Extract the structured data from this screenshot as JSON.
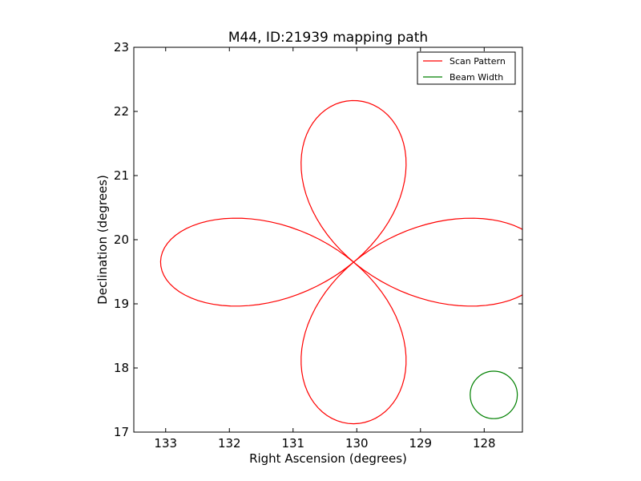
{
  "chart_data": {
    "type": "line",
    "title": "M44, ID:21939 mapping path",
    "xlabel": "Right Ascension (degrees)",
    "ylabel": "Declination (degrees)",
    "xlim": [
      133.5,
      127.4
    ],
    "ylim": [
      17,
      23
    ],
    "x_axis_reversed": true,
    "xticks": [
      133,
      132,
      131,
      130,
      129,
      128
    ],
    "yticks": [
      17,
      18,
      19,
      20,
      21,
      22,
      23
    ],
    "grid": false,
    "legend": {
      "placement": "top-right",
      "entries": [
        "Scan Pattern",
        "Beam Width"
      ]
    },
    "series": [
      {
        "name": "Scan Pattern",
        "kind": "rose-curve",
        "color": "#ff0000",
        "center": {
          "ra": 130.05,
          "dec": 19.65
        },
        "petals": 4,
        "ra_amplitude": 3.03,
        "dec_amplitude": 2.52,
        "points_approx": [
          {
            "ra": 130.05,
            "dec": 19.65
          },
          {
            "ra": 129.45,
            "dec": 20.32
          },
          {
            "ra": 129.05,
            "dec": 21.15
          },
          {
            "ra": 129.55,
            "dec": 21.85
          },
          {
            "ra": 130.05,
            "dec": 22.17
          },
          {
            "ra": 130.65,
            "dec": 21.85
          },
          {
            "ra": 131.05,
            "dec": 21.15
          },
          {
            "ra": 130.65,
            "dec": 20.32
          },
          {
            "ra": 131.7,
            "dec": 20.35
          },
          {
            "ra": 132.5,
            "dec": 20.2
          },
          {
            "ra": 133.08,
            "dec": 19.65
          },
          {
            "ra": 132.5,
            "dec": 19.1
          },
          {
            "ra": 131.7,
            "dec": 18.97
          },
          {
            "ra": 130.65,
            "dec": 18.98
          },
          {
            "ra": 131.05,
            "dec": 18.15
          },
          {
            "ra": 130.65,
            "dec": 17.45
          },
          {
            "ra": 130.05,
            "dec": 17.13
          },
          {
            "ra": 129.45,
            "dec": 17.45
          },
          {
            "ra": 129.05,
            "dec": 18.15
          },
          {
            "ra": 129.45,
            "dec": 18.98
          },
          {
            "ra": 128.4,
            "dec": 19.0
          },
          {
            "ra": 127.6,
            "dec": 19.2
          },
          {
            "ra": 127.02,
            "dec": 19.65
          },
          {
            "ra": 127.6,
            "dec": 20.1
          },
          {
            "ra": 128.4,
            "dec": 20.35
          }
        ]
      },
      {
        "name": "Beam Width",
        "kind": "circle",
        "color": "#008000",
        "center": {
          "ra": 127.85,
          "dec": 17.58
        },
        "radius_deg": 0.37
      }
    ]
  }
}
